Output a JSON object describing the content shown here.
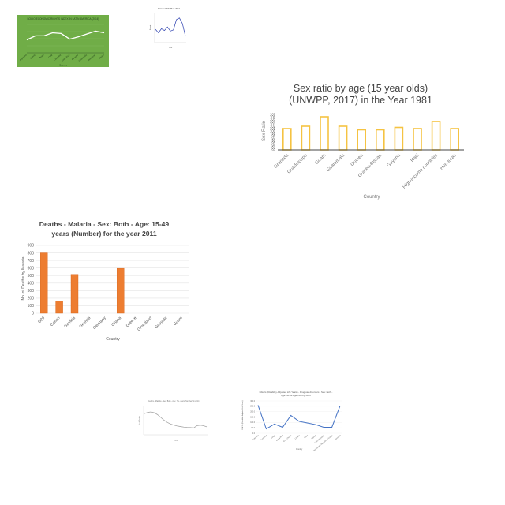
{
  "chart_data": [
    {
      "id": "green_line",
      "type": "line",
      "title": "SOCIO ECONOMIC RIGHTS INDEX IN LATIN AMERICA (2016)",
      "xlabel": "Country",
      "ylabel": "",
      "categories": [
        "Argentina",
        "Bolivia",
        "Brazil",
        "Chile",
        "Colombia",
        "Costa Rica",
        "Ecuador",
        "Guatemala",
        "Honduras",
        "Mexico"
      ],
      "values": [
        0.55,
        0.72,
        0.72,
        0.85,
        0.82,
        0.58,
        0.68,
        0.8,
        0.92,
        0.85
      ],
      "ylim": [
        0,
        1.2
      ],
      "colors": {
        "background": "#70ad47",
        "line": "#ffffff"
      }
    },
    {
      "id": "small_line",
      "type": "line",
      "title": "Extent of NEMS in 2013",
      "xlabel": "Year",
      "ylabel": "Extent",
      "x": [
        1,
        2,
        3,
        4,
        5,
        6,
        7,
        8,
        9,
        10,
        11
      ],
      "values": [
        5.2,
        4.6,
        5.3,
        5.0,
        5.6,
        4.9,
        5.1,
        6.9,
        7.2,
        6.2,
        4.0
      ],
      "ylim": [
        3,
        8
      ],
      "colors": {
        "line": "#3b4db5"
      }
    },
    {
      "id": "sex_ratio",
      "type": "bar",
      "title": "Sex ratio by age (15 year olds) (UNWPP, 2017) in the Year 1981",
      "xlabel": "Country",
      "ylabel": "Sex Ratio",
      "categories": [
        "Grenada",
        "Guadeloupe",
        "Guam",
        "Guatemala",
        "Guinea",
        "Guinea-Bissau",
        "Guyana",
        "Haiti",
        "High-income countries",
        "Honduras"
      ],
      "values": [
        101,
        102,
        106,
        102,
        100.5,
        100.5,
        101.5,
        101,
        104,
        101
      ],
      "ylim": [
        92,
        108
      ],
      "yticks": [
        92,
        93,
        94,
        95,
        96,
        97,
        98,
        99,
        100,
        101,
        102,
        103,
        104,
        105,
        106,
        107
      ],
      "colors": {
        "bar": "#f5c342"
      }
    },
    {
      "id": "malaria",
      "type": "bar",
      "title": "Deaths - Malaria - Sex: Both - Age: 15-49 years (Number) for the year 2011",
      "xlabel": "Country",
      "ylabel": "No. of Deaths by Malaria",
      "categories": [
        "G20",
        "Gabon",
        "Gambia",
        "Georgia",
        "Germany",
        "Ghana",
        "Greece",
        "Greenland",
        "Grenada",
        "Guam"
      ],
      "values": [
        800,
        165,
        515,
        0,
        0,
        595,
        0,
        0,
        0,
        0
      ],
      "ylim": [
        0,
        900
      ],
      "yticks": [
        0,
        100,
        200,
        300,
        400,
        500,
        600,
        700,
        800,
        900
      ],
      "colors": {
        "bar": "#ed7d31",
        "bar_edge": "#d65f12"
      }
    },
    {
      "id": "gray_line",
      "type": "line",
      "title": "Deaths - Malaria - Sex: Both - Age: 70+ years (Number) in 2014",
      "xlabel": "Year",
      "ylabel": "No. of Deaths",
      "x": [
        1,
        2,
        3,
        4,
        5,
        6,
        7,
        8,
        9,
        10,
        11,
        12,
        13,
        14,
        15,
        16,
        17,
        18,
        19,
        20
      ],
      "values": [
        370,
        390,
        400,
        385,
        350,
        300,
        250,
        210,
        180,
        160,
        145,
        135,
        125,
        120,
        118,
        110,
        150,
        160,
        150,
        130
      ],
      "ylim": [
        0,
        500
      ],
      "colors": {
        "line": "#a6a6a6"
      }
    },
    {
      "id": "daly",
      "type": "line",
      "title": "DALYs (Disability-Adjusted Life Years) - Drug use disorders - Sex: Both - Age: 50-69 Ages during 1996",
      "xlabel": "Country",
      "ylabel": "DALYs (Disability-Adjusted Life Years)",
      "categories": [
        "Colombia",
        "Comoros",
        "Congo",
        "Costa Rica",
        "Cote d'Ivoire",
        "Croatia",
        "Cuba",
        "Cyprus",
        "Czech Republic",
        "Democratic Republic of Congo",
        "Denmark"
      ],
      "values": [
        260,
        40,
        85,
        55,
        165,
        110,
        95,
        80,
        55,
        55,
        255
      ],
      "ylim": [
        0,
        300
      ],
      "yticks": [
        0,
        50,
        100,
        150,
        200,
        250,
        300
      ],
      "colors": {
        "line": "#4472c4"
      }
    }
  ]
}
